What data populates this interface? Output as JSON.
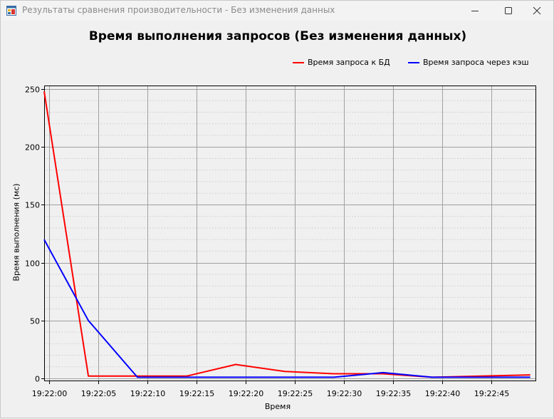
{
  "window": {
    "title": "Результаты сравнения производительности - Без изменения данных",
    "icon": "app-window-icon",
    "controls": [
      "minimize-icon",
      "maximize-icon",
      "close-icon"
    ]
  },
  "chart_data": {
    "type": "line",
    "title": "Время выполнения запросов (Без изменения данных)",
    "xlabel": "Время",
    "ylabel": "Время выполнения (мс)",
    "x_ticks": [
      "19:22:00",
      "19:22:05",
      "19:22:10",
      "19:22:15",
      "19:22:20",
      "19:22:25",
      "19:22:30",
      "19:22:35",
      "19:22:40",
      "19:22:45"
    ],
    "y_ticks": [
      0,
      50,
      100,
      150,
      200,
      250
    ],
    "ylim": [
      0,
      250
    ],
    "xlim_seconds": [
      -0.5,
      49.6
    ],
    "legend_position": "top-right",
    "grid": true,
    "x": [
      "19:21:59.5",
      "19:22:04",
      "19:22:09",
      "19:22:14",
      "19:22:19",
      "19:22:24",
      "19:22:29",
      "19:22:34",
      "19:22:39",
      "19:22:44",
      "19:22:49"
    ],
    "series": [
      {
        "name": "Время запроса к БД",
        "color": "#ff0000",
        "values": [
          248,
          2,
          2,
          2,
          12,
          6,
          4,
          4,
          1,
          2,
          3
        ]
      },
      {
        "name": "Время запроса через кэш",
        "color": "#0000ff",
        "values": [
          120,
          50,
          1,
          1,
          1,
          1,
          1,
          5,
          1,
          1,
          1
        ]
      }
    ]
  }
}
